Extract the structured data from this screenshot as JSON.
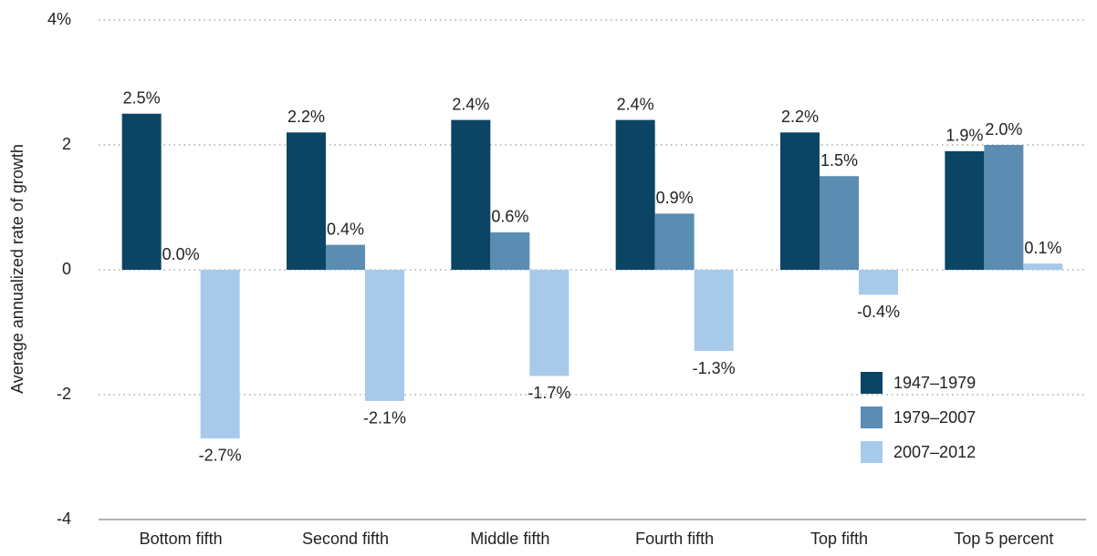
{
  "chart_data": {
    "type": "bar",
    "ylabel": "Average annualized rate of growth",
    "categories": [
      "Bottom fifth",
      "Second fifth",
      "Middle fifth",
      "Fourth fifth",
      "Top fifth",
      "Top 5 percent"
    ],
    "series": [
      {
        "name": "1947–1979",
        "color": "#0b4563",
        "values": [
          2.5,
          2.2,
          2.4,
          2.4,
          2.2,
          1.9
        ],
        "value_labels": [
          "2.5%",
          "2.2%",
          "2.4%",
          "2.4%",
          "2.2%",
          "1.9%"
        ]
      },
      {
        "name": "1979–2007",
        "color": "#5b8db3",
        "values": [
          0.0,
          0.4,
          0.6,
          0.9,
          1.5,
          2.0
        ],
        "value_labels": [
          "0.0%",
          "0.4%",
          "0.6%",
          "0.9%",
          "1.5%",
          "2.0%"
        ]
      },
      {
        "name": "2007–2012",
        "color": "#a7caeb",
        "values": [
          -2.7,
          -2.1,
          -1.7,
          -1.3,
          -0.4,
          0.1
        ],
        "value_labels": [
          "-2.7%",
          "-2.1%",
          "-1.7%",
          "-1.3%",
          "-0.4%",
          "0.1%"
        ]
      }
    ],
    "ylim": [
      -4,
      4
    ],
    "yticks": [
      {
        "value": 4,
        "label": "4%"
      },
      2,
      0,
      -2,
      -4
    ],
    "grid": true,
    "legend": "lower right"
  }
}
